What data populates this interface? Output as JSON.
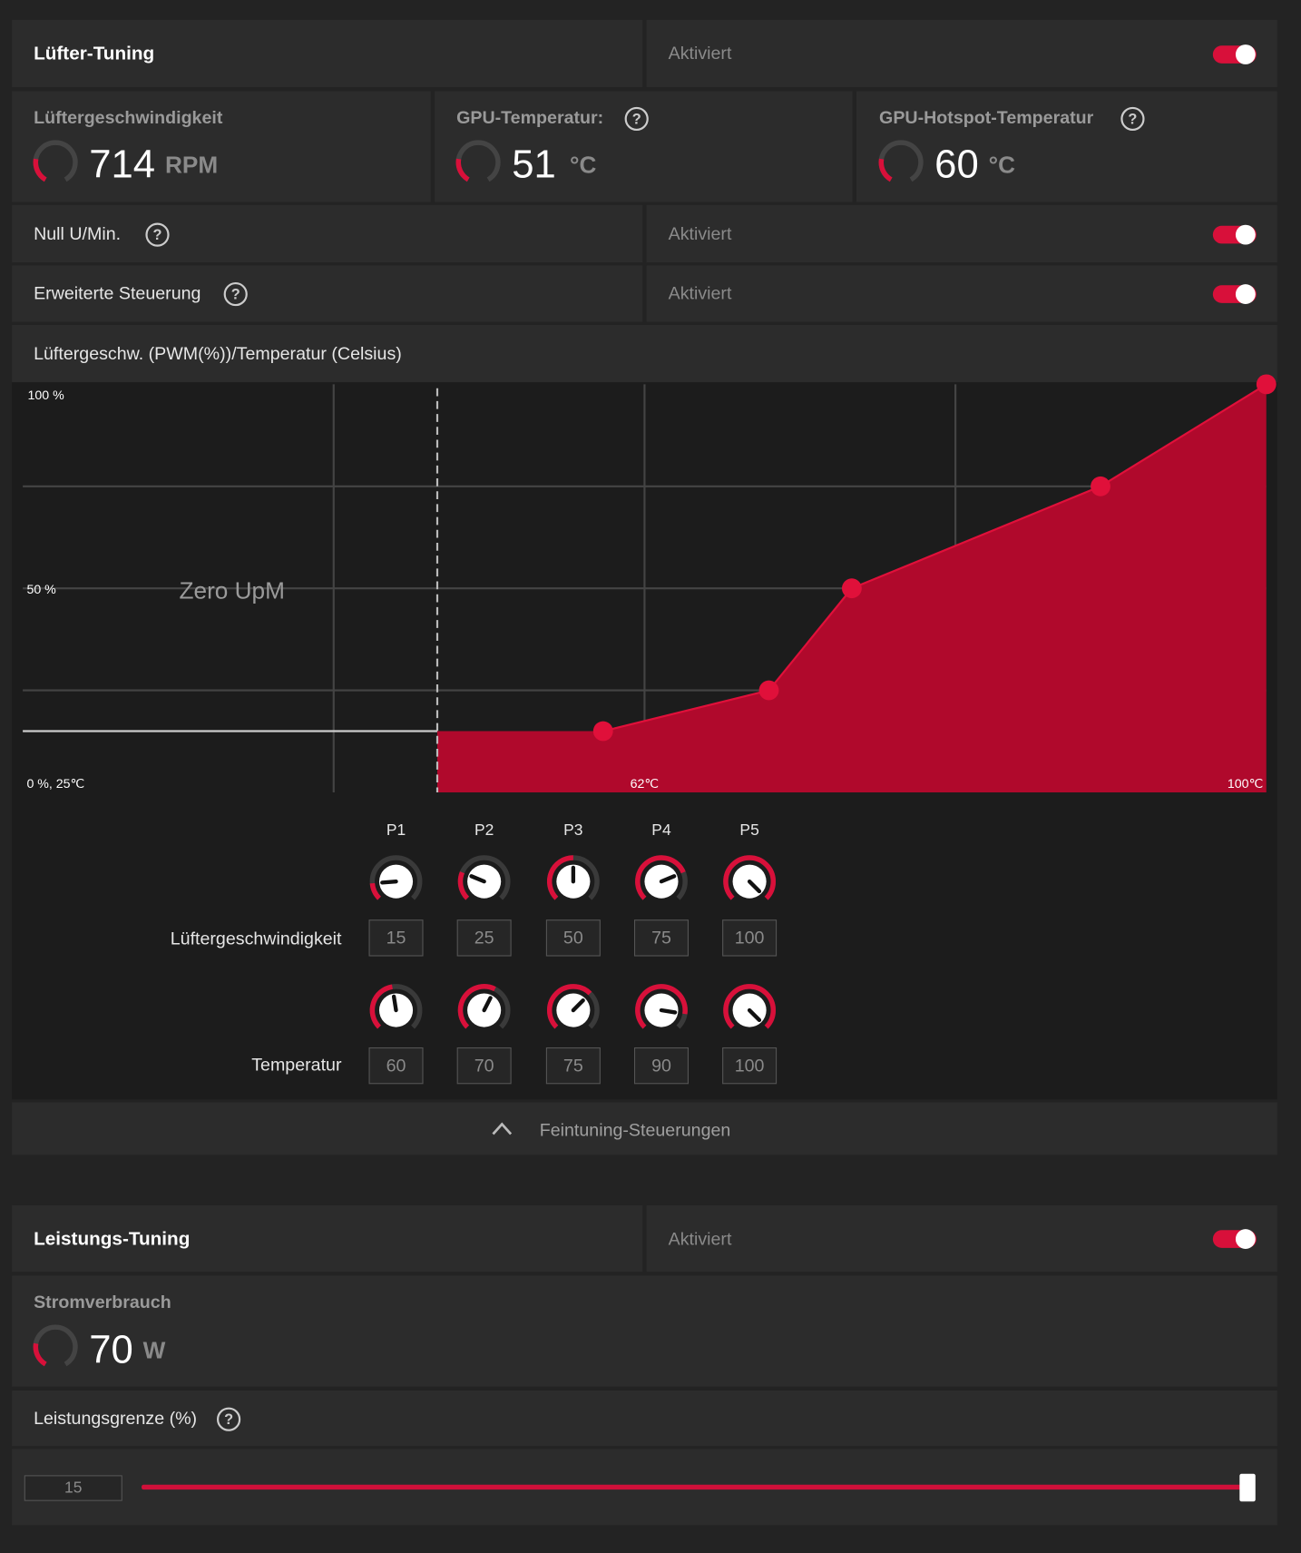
{
  "fan_tuning": {
    "title": "Lüfter-Tuning",
    "status": "Aktiviert",
    "fan_speed": {
      "label": "Lüftergeschwindigkeit",
      "value": 714,
      "unit": "RPM"
    },
    "gpu_temp": {
      "label": "GPU-Temperatur:",
      "value": 51,
      "unit": "°C"
    },
    "hotspot_temp": {
      "label": "GPU-Hotspot-Temperatur",
      "value": 60,
      "unit": "°C"
    },
    "zero_rpm": {
      "label": "Null U/Min.",
      "status": "Aktiviert"
    },
    "advanced": {
      "label": "Erweiterte Steuerung",
      "status": "Aktiviert"
    },
    "curve": {
      "title": "Lüftergeschw. (PWM(%))/Temperatur (Celsius)",
      "y_top_label": "100 %",
      "y_mid_label": "50 %",
      "origin_label": "0 %, 25℃",
      "x_mid_label": "62℃",
      "x_end_label": "100℃",
      "zero_label": "Zero UpM",
      "xlim": [
        25,
        100
      ],
      "ylim": [
        0,
        100
      ],
      "xticks": [
        43.75,
        62.5,
        81.25
      ],
      "yticks": [
        25,
        50,
        75
      ],
      "zero_rpm_limit": 50
    },
    "points": {
      "names": [
        "P1",
        "P2",
        "P3",
        "P4",
        "P5"
      ],
      "speed_label": "Lüftergeschwindigkeit",
      "speeds": [
        15,
        25,
        50,
        75,
        100
      ],
      "temp_label": "Temperatur",
      "temps": [
        60,
        70,
        75,
        90,
        100
      ]
    },
    "fine_tune": "Feintuning-Steuerungen"
  },
  "power_tuning": {
    "title": "Leistungs-Tuning",
    "status": "Aktiviert",
    "power": {
      "label": "Stromverbrauch",
      "value": 70,
      "unit": "W"
    },
    "limit": {
      "label": "Leistungsgrenze (%)",
      "value": 15
    }
  }
}
